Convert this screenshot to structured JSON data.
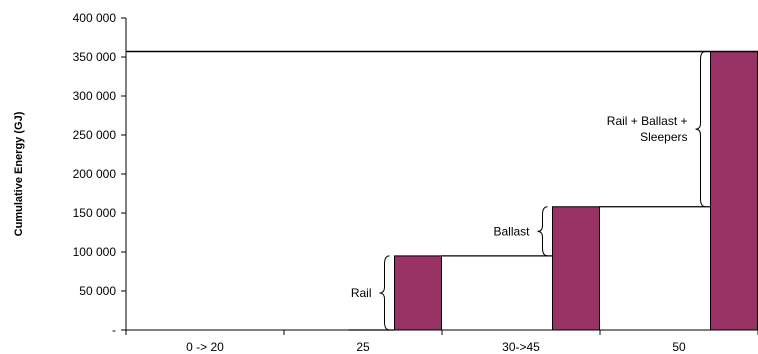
{
  "chart_data": {
    "type": "bar",
    "categories": [
      "0 -> 20",
      "25",
      "30->45",
      "50"
    ],
    "values": [
      0,
      95000,
      158000,
      357000
    ],
    "ylabel": "Cumulative Energy (GJ)",
    "ylim": [
      0,
      400000
    ],
    "yticks": [
      {
        "value": 0,
        "label": "-"
      },
      {
        "value": 50000,
        "label": "50 000"
      },
      {
        "value": 100000,
        "label": "100 000"
      },
      {
        "value": 150000,
        "label": "150 000"
      },
      {
        "value": 200000,
        "label": "200 000"
      },
      {
        "value": 250000,
        "label": "250 000"
      },
      {
        "value": 300000,
        "label": "300 000"
      },
      {
        "value": 350000,
        "label": "350 000"
      },
      {
        "value": 400000,
        "label": "400 000"
      }
    ],
    "grid": false,
    "bar_color": "#993366",
    "reference_line": 357000,
    "annotations": [
      {
        "lines": [
          "Rail"
        ],
        "from": 0,
        "to": 95000,
        "category": "25"
      },
      {
        "lines": [
          "Ballast"
        ],
        "from": 95000,
        "to": 158000,
        "category": "30->45"
      },
      {
        "lines": [
          "Rail + Ballast +",
          "Sleepers"
        ],
        "from": 158000,
        "to": 357000,
        "category": "50"
      }
    ]
  }
}
